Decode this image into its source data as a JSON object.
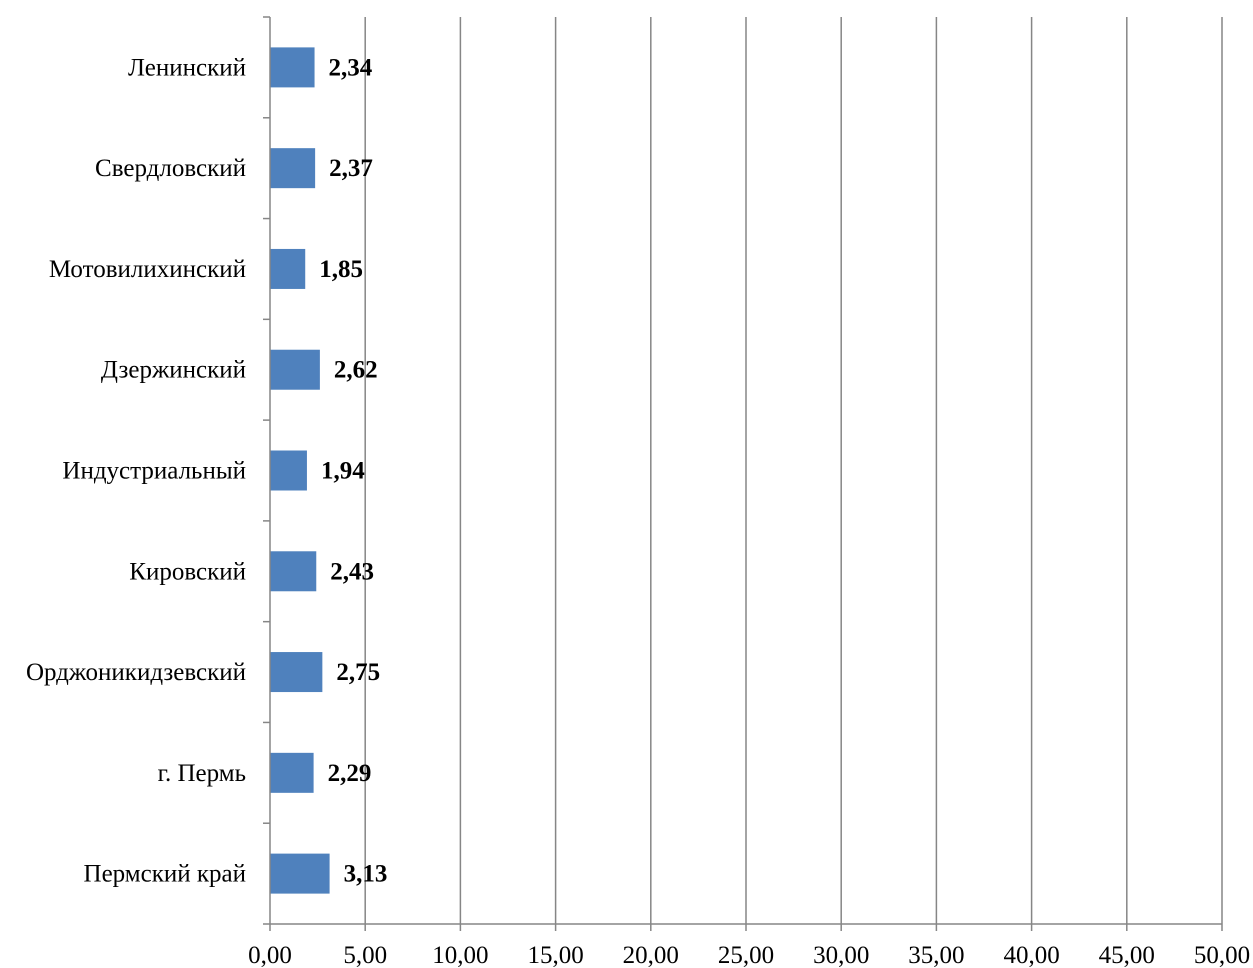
{
  "chart_data": {
    "type": "bar",
    "orientation": "horizontal",
    "categories": [
      "Ленинский",
      "Свердловский",
      "Мотовилихинский",
      "Дзержинский",
      "Индустриальный",
      "Кировский",
      "Орджоникидзевский",
      "г. Пермь",
      "Пермский край"
    ],
    "values": [
      2.34,
      2.37,
      1.85,
      2.62,
      1.94,
      2.43,
      2.75,
      2.29,
      3.13
    ],
    "value_labels": [
      "2,34",
      "2,37",
      "1,85",
      "2,62",
      "1,94",
      "2,43",
      "2,75",
      "2,29",
      "3,13"
    ],
    "x_ticks": [
      "0,00",
      "5,00",
      "10,00",
      "15,00",
      "20,00",
      "25,00",
      "30,00",
      "35,00",
      "40,00",
      "45,00",
      "50,00"
    ],
    "xlim": [
      0,
      50
    ],
    "grid": "vertical",
    "legend": "none",
    "bar_color": "#4F81BD",
    "grid_color": "#868686",
    "title": "",
    "xlabel": "",
    "ylabel": ""
  }
}
